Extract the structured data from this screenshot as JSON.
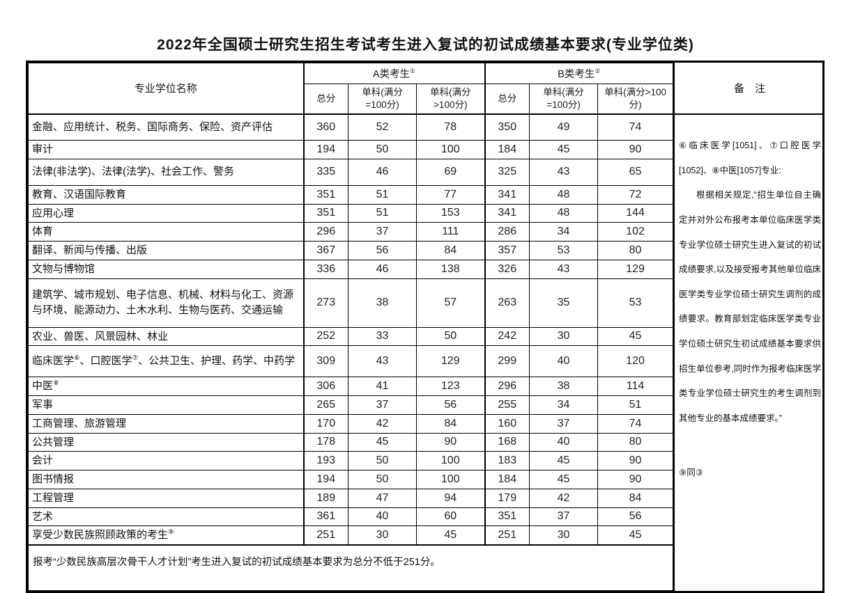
{
  "title": "2022年全国硕士研究生招生考试考生进入复试的初试成绩基本要求(专业学位类)",
  "table": {
    "headers": {
      "name": "专业学位名称",
      "group_a": {
        "label": "A类考生",
        "sup": "①"
      },
      "group_b": {
        "label": "B类考生",
        "sup": "②"
      },
      "total": "总分",
      "single_100": "单科(满分=100分)",
      "single_gt100": "单科(满分>100分)",
      "remarks": "备　注"
    },
    "rows": [
      {
        "name": "金融、应用统计、税务、国际商务、保险、资产评估",
        "a": [
          "360",
          "52",
          "78"
        ],
        "b": [
          "350",
          "49",
          "74"
        ]
      },
      {
        "name": "审计",
        "a": [
          "194",
          "50",
          "100"
        ],
        "b": [
          "184",
          "45",
          "90"
        ]
      },
      {
        "name": "法律(非法学)、法律(法学)、社会工作、警务",
        "a": [
          "335",
          "46",
          "69"
        ],
        "b": [
          "325",
          "43",
          "65"
        ]
      },
      {
        "name": "教育、汉语国际教育",
        "a": [
          "351",
          "51",
          "77"
        ],
        "b": [
          "341",
          "48",
          "72"
        ]
      },
      {
        "name": "应用心理",
        "a": [
          "351",
          "51",
          "153"
        ],
        "b": [
          "341",
          "48",
          "144"
        ]
      },
      {
        "name": "体育",
        "a": [
          "296",
          "37",
          "111"
        ],
        "b": [
          "286",
          "34",
          "102"
        ]
      },
      {
        "name": "翻译、新闻与传播、出版",
        "a": [
          "367",
          "56",
          "84"
        ],
        "b": [
          "357",
          "53",
          "80"
        ]
      },
      {
        "name": "文物与博物馆",
        "a": [
          "336",
          "46",
          "138"
        ],
        "b": [
          "326",
          "43",
          "129"
        ]
      },
      {
        "name": "建筑学、城市规划、电子信息、机械、材料与化工、资源与环境、能源动力、土木水利、生物与医药、交通运输",
        "a": [
          "273",
          "38",
          "57"
        ],
        "b": [
          "263",
          "35",
          "53"
        ]
      },
      {
        "name": "农业、兽医、风景园林、林业",
        "a": [
          "252",
          "33",
          "50"
        ],
        "b": [
          "242",
          "30",
          "45"
        ]
      },
      {
        "name": "临床医学⑥、口腔医学⑦、公共卫生、护理、药学、中药学",
        "a": [
          "309",
          "43",
          "129"
        ],
        "b": [
          "299",
          "40",
          "120"
        ]
      },
      {
        "name": "中医⑧",
        "a": [
          "306",
          "41",
          "123"
        ],
        "b": [
          "296",
          "38",
          "114"
        ]
      },
      {
        "name": "军事",
        "a": [
          "265",
          "37",
          "56"
        ],
        "b": [
          "255",
          "34",
          "51"
        ]
      },
      {
        "name": "工商管理、旅游管理",
        "a": [
          "170",
          "42",
          "84"
        ],
        "b": [
          "160",
          "37",
          "74"
        ]
      },
      {
        "name": "公共管理",
        "a": [
          "178",
          "45",
          "90"
        ],
        "b": [
          "168",
          "40",
          "80"
        ]
      },
      {
        "name": "会计",
        "a": [
          "193",
          "50",
          "100"
        ],
        "b": [
          "183",
          "45",
          "90"
        ]
      },
      {
        "name": "图书情报",
        "a": [
          "194",
          "50",
          "100"
        ],
        "b": [
          "184",
          "45",
          "90"
        ]
      },
      {
        "name": "工程管理",
        "a": [
          "189",
          "47",
          "94"
        ],
        "b": [
          "179",
          "42",
          "84"
        ]
      },
      {
        "name": "艺术",
        "a": [
          "361",
          "40",
          "60"
        ],
        "b": [
          "351",
          "37",
          "56"
        ]
      },
      {
        "name": "享受少数民族照顾政策的考生⑨",
        "a": [
          "251",
          "30",
          "45"
        ],
        "b": [
          "251",
          "30",
          "45"
        ]
      }
    ],
    "footer_note": "报考“少数民族高层次骨干人才计划”考生进入复试的初试成绩基本要求为总分不低于251分。"
  },
  "remarks": {
    "note_678_title": "⑥临床医学[1051]、⑦口腔医学[1052]、⑧中医[1057]专业:",
    "note_678_body": "根据相关规定,“招生单位自主确定并对外公布报考本单位临床医学类专业学位硕士研究生进入复试的初试成绩要求,以及接受报考其他单位临床医学类专业学位硕士研究生调剂的成绩要求。教育部划定临床医学类专业学位硕士研究生初试成绩基本要求供招生单位参考,同时作为报考临床医学类专业学位硕士研究生的考生调剂到其他专业的基本成绩要求。”",
    "note_9": "⑨同③"
  }
}
